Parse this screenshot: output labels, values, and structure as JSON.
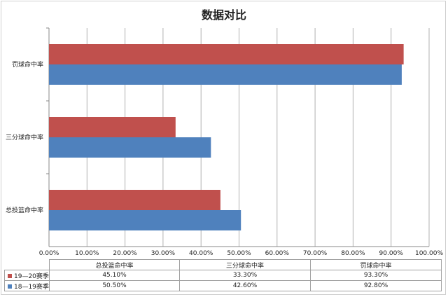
{
  "chart_data": {
    "type": "bar",
    "orientation": "horizontal",
    "title": "数据对比",
    "categories": [
      "罚球命中率",
      "三分球命中率",
      "总投篮命中率"
    ],
    "series": [
      {
        "name": "19—20赛季",
        "color": "#c0504d",
        "values": [
          93.3,
          33.3,
          45.1
        ],
        "labels": [
          "93.30%",
          "33.30%",
          "45.10%"
        ]
      },
      {
        "name": "18—19赛季",
        "color": "#4f81bd",
        "values": [
          92.8,
          42.6,
          50.5
        ],
        "labels": [
          "92.80%",
          "42.60%",
          "50.50%"
        ]
      }
    ],
    "xlim": [
      0,
      100
    ],
    "x_ticks": [
      "0.00%",
      "10.00%",
      "20.00%",
      "30.00%",
      "40.00%",
      "50.00%",
      "60.00%",
      "70.00%",
      "80.00%",
      "90.00%",
      "100.00%"
    ],
    "grid": true,
    "data_table": {
      "columns": [
        "总投篮命中率",
        "三分球命中率",
        "罚球命中率"
      ],
      "rows": [
        {
          "series": "19—20赛季",
          "color": "#c0504d",
          "cells": [
            "45.10%",
            "33.30%",
            "93.30%"
          ]
        },
        {
          "series": "18—19赛季",
          "color": "#4f81bd",
          "cells": [
            "50.50%",
            "42.60%",
            "92.80%"
          ]
        }
      ]
    }
  }
}
